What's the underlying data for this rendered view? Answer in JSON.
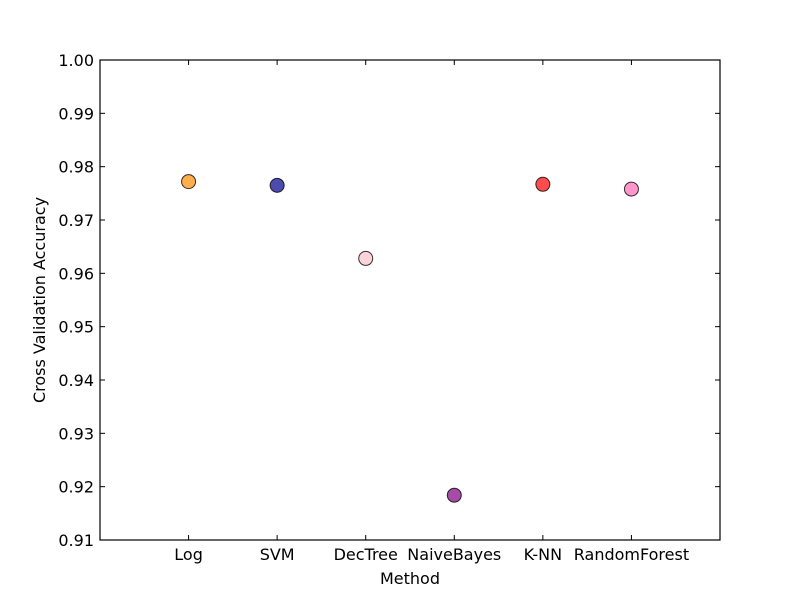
{
  "chart_data": {
    "type": "scatter",
    "title": "",
    "xlabel": "Method",
    "ylabel": "Cross Validation Accuracy",
    "categories": [
      "Log",
      "SVM",
      "DecTree",
      "NaiveBayes",
      "K-NN",
      "RandomForest"
    ],
    "values": [
      0.9772,
      0.9765,
      0.9628,
      0.9184,
      0.9767,
      0.9758
    ],
    "colors": [
      "#ff8c00",
      "#00008b",
      "#ffc0cb",
      "#800080",
      "#ff0000",
      "#ff69b4"
    ],
    "ylim": [
      0.91,
      1.0
    ],
    "yticks": [
      "0.91",
      "0.92",
      "0.93",
      "0.94",
      "0.95",
      "0.96",
      "0.97",
      "0.98",
      "0.99",
      "1.00"
    ],
    "grid": false,
    "legend": "none"
  }
}
